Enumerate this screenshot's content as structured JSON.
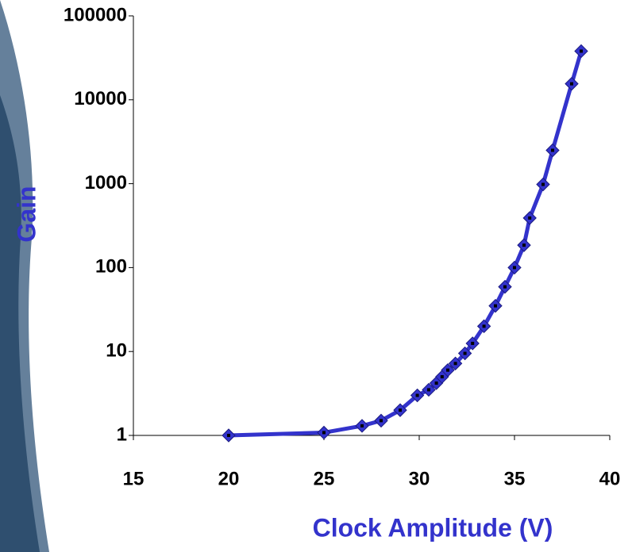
{
  "chart_data": {
    "type": "line",
    "xlabel": "Clock Amplitude (V)",
    "ylabel": "Gain",
    "yscale": "log",
    "xlim": [
      15,
      40
    ],
    "xticks": [
      15,
      20,
      25,
      30,
      35,
      40
    ],
    "ylim": [
      1,
      100000
    ],
    "yticks": [
      1,
      10,
      100,
      1000,
      10000,
      100000
    ],
    "series": [
      {
        "color": "#3333cc",
        "marker": "diamond",
        "x": [
          20,
          25,
          27,
          28,
          29,
          29.9,
          30.5,
          30.9,
          31.2,
          31.5,
          31.9,
          32.4,
          32.8,
          33.4,
          34,
          34.5,
          35,
          35.5,
          35.8,
          36.5,
          37,
          38,
          38.5
        ],
        "values": [
          1,
          1.08,
          1.3,
          1.5,
          2.0,
          3.0,
          3.5,
          4.2,
          5,
          6,
          7.2,
          9.5,
          12.5,
          20,
          35,
          59,
          100,
          185,
          390,
          980,
          2500,
          15500,
          38000
        ]
      }
    ]
  }
}
